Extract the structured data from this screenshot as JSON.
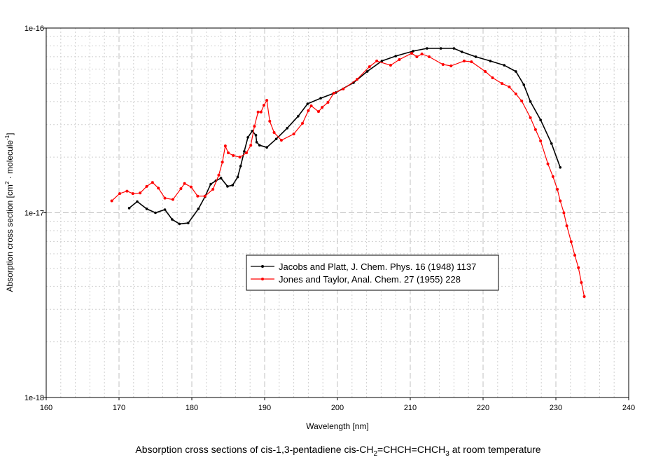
{
  "chart_data": {
    "type": "line",
    "title": "Absorption cross sections of cis-1,3-pentadiene cis-CH2=CHCH=CHCH3 at room temperature",
    "title_parts": {
      "a": "Absorption cross sections of cis-1,3-pentadiene cis-CH",
      "s1": "2",
      "b": "=CHCH=CHCH",
      "s2": "3",
      "c": " at room temperature"
    },
    "xlabel": "Wavelength [nm]",
    "ylabel": "Absorption cross section [cm2 · molecule-1]",
    "ylabel_parts": {
      "a": "Absorption cross section [cm",
      "s1": "2",
      "b": " · molecule",
      "s2": "-1",
      "c": "]"
    },
    "xlim": [
      160,
      240
    ],
    "ylim": [
      1e-18,
      1e-16
    ],
    "yscale": "log",
    "xticks": [
      "160",
      "170",
      "180",
      "190",
      "200",
      "210",
      "220",
      "230",
      "240"
    ],
    "yticks": [
      "1e-18",
      "1e-17",
      "1e-16"
    ],
    "grid": true,
    "legend_placement": "center",
    "series": [
      {
        "name": "Jacobs and Platt, J. Chem. Phys. 16 (1948) 1137",
        "color": "#000000",
        "x": [
          171.4,
          172.5,
          173.8,
          175.0,
          176.3,
          177.3,
          178.3,
          179.5,
          180.9,
          181.8,
          182.6,
          183.3,
          184.0,
          184.9,
          185.6,
          186.3,
          186.7,
          187.2,
          187.7,
          188.3,
          188.8,
          188.9,
          189.3,
          190.3,
          191.6,
          193.1,
          194.6,
          195.9,
          197.7,
          199.8,
          202.2,
          204.1,
          206.1,
          208.0,
          210.4,
          212.3,
          214.2,
          216.0,
          217.1,
          219.0,
          221.0,
          222.9,
          224.5,
          225.6,
          226.5,
          227.9,
          229.4,
          230.6
        ],
        "y": [
          1.06e-17,
          1.15e-17,
          1.05e-17,
          1e-17,
          1.04e-17,
          9.2e-18,
          8.7e-18,
          8.8e-18,
          1.05e-17,
          1.22e-17,
          1.43e-17,
          1.49e-17,
          1.54e-17,
          1.39e-17,
          1.41e-17,
          1.56e-17,
          1.79e-17,
          2.15e-17,
          2.56e-17,
          2.77e-17,
          2.63e-17,
          2.41e-17,
          2.32e-17,
          2.26e-17,
          2.51e-17,
          2.87e-17,
          3.33e-17,
          3.89e-17,
          4.17e-17,
          4.48e-17,
          5.06e-17,
          5.82e-17,
          6.63e-17,
          7.05e-17,
          7.5e-17,
          7.76e-17,
          7.76e-17,
          7.76e-17,
          7.43e-17,
          6.99e-17,
          6.63e-17,
          6.29e-17,
          5.82e-17,
          4.93e-17,
          4e-17,
          3.18e-17,
          2.37e-17,
          1.76e-17
        ]
      },
      {
        "name": "Jones and Taylor, Anal. Chem. 27 (1955) 228",
        "color": "#ff0000",
        "x": [
          169.0,
          170.1,
          171.1,
          171.9,
          172.9,
          173.8,
          174.6,
          175.4,
          176.3,
          177.4,
          178.5,
          179.0,
          179.9,
          180.8,
          181.8,
          182.9,
          183.7,
          184.2,
          184.6,
          185.0,
          185.7,
          186.6,
          187.5,
          188.1,
          188.6,
          189.1,
          189.5,
          189.9,
          190.3,
          190.7,
          191.3,
          192.3,
          194.0,
          195.2,
          196.0,
          196.4,
          197.4,
          197.9,
          198.7,
          199.5,
          200.8,
          202.7,
          204.4,
          205.4,
          207.3,
          208.5,
          210.2,
          210.9,
          211.6,
          212.6,
          214.5,
          215.6,
          217.4,
          218.4,
          220.3,
          221.3,
          222.6,
          223.6,
          224.5,
          225.3,
          226.5,
          227.2,
          227.9,
          228.9,
          229.6,
          230.2,
          230.6,
          231.1,
          231.5,
          232.1,
          232.6,
          233.1,
          233.5,
          233.9
        ],
        "y": [
          1.16e-17,
          1.27e-17,
          1.31e-17,
          1.27e-17,
          1.28e-17,
          1.39e-17,
          1.46e-17,
          1.36e-17,
          1.2e-17,
          1.18e-17,
          1.35e-17,
          1.44e-17,
          1.38e-17,
          1.23e-17,
          1.23e-17,
          1.34e-17,
          1.6e-17,
          1.88e-17,
          2.3e-17,
          2.11e-17,
          2.04e-17,
          2e-17,
          2.11e-17,
          2.32e-17,
          2.94e-17,
          3.51e-17,
          3.51e-17,
          3.82e-17,
          4.06e-17,
          3.13e-17,
          2.72e-17,
          2.47e-17,
          2.67e-17,
          3.05e-17,
          3.57e-17,
          3.79e-17,
          3.53e-17,
          3.72e-17,
          3.96e-17,
          4.44e-17,
          4.68e-17,
          5.28e-17,
          6.18e-17,
          6.63e-17,
          6.29e-17,
          6.75e-17,
          7.3e-17,
          6.99e-17,
          7.24e-17,
          6.99e-17,
          6.35e-17,
          6.24e-17,
          6.63e-17,
          6.57e-17,
          5.82e-17,
          5.38e-17,
          5.01e-17,
          4.8e-17,
          4.4e-17,
          4.03e-17,
          3.27e-17,
          2.82e-17,
          2.45e-17,
          1.84e-17,
          1.57e-17,
          1.34e-17,
          1.16e-17,
          1e-17,
          8.5e-18,
          6.97e-18,
          5.89e-18,
          5.04e-18,
          4.19e-18,
          3.52e-18
        ]
      }
    ]
  }
}
